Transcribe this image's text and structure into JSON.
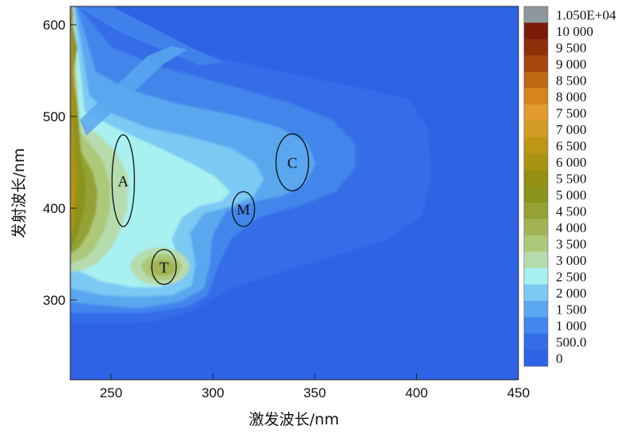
{
  "chart_data": {
    "type": "heatmap",
    "title": "",
    "xlabel": "激发波长/nm",
    "ylabel": "发射波长/nm",
    "xlim": [
      230,
      450
    ],
    "ylim": [
      213,
      620
    ],
    "x_ticks": [
      250,
      300,
      350,
      400,
      450
    ],
    "y_ticks": [
      300,
      400,
      500,
      600
    ],
    "background_color": "#2e63e6",
    "colorbar": {
      "placement": "right",
      "levels": [
        {
          "label": "1.050E+04",
          "color": "#8e979b"
        },
        {
          "label": "10 000",
          "color": "#7a1c07"
        },
        {
          "label": "9 500",
          "color": "#8e2f09"
        },
        {
          "label": "9 000",
          "color": "#a6480d"
        },
        {
          "label": "8 500",
          "color": "#c06714"
        },
        {
          "label": "8 000",
          "color": "#d8841e"
        },
        {
          "label": "7 500",
          "color": "#e29a2f"
        },
        {
          "label": "7 000",
          "color": "#d19b24"
        },
        {
          "label": "6 500",
          "color": "#bd9613"
        },
        {
          "label": "6 000",
          "color": "#a99310"
        },
        {
          "label": "5 500",
          "color": "#958f12"
        },
        {
          "label": "5 000",
          "color": "#8a931a"
        },
        {
          "label": "4 500",
          "color": "#94a235"
        },
        {
          "label": "4 000",
          "color": "#a1b354"
        },
        {
          "label": "3 500",
          "color": "#aec87a"
        },
        {
          "label": "3 000",
          "color": "#b6dcae"
        },
        {
          "label": "2 500",
          "color": "#a9f0f0"
        },
        {
          "label": "2 000",
          "color": "#7cc9f4"
        },
        {
          "label": "1 500",
          "color": "#5aa7f0"
        },
        {
          "label": "1 000",
          "color": "#4386ec"
        },
        {
          "label": "500.0",
          "color": "#356de8"
        },
        {
          "label": "0",
          "color": "#2e63e6"
        }
      ]
    },
    "peaks": [
      {
        "label": "A",
        "ex": 256,
        "em": 430,
        "ex_halfwidth": 5.5,
        "em_halfwidth": 50
      },
      {
        "label": "T",
        "ex": 276,
        "em": 336,
        "ex_halfwidth": 6,
        "em_halfwidth": 19
      },
      {
        "label": "M",
        "ex": 315,
        "em": 399,
        "ex_halfwidth": 5.5,
        "em_halfwidth": 19
      },
      {
        "label": "C",
        "ex": 339,
        "em": 450,
        "ex_halfwidth": 8,
        "em_halfwidth": 31
      }
    ]
  }
}
